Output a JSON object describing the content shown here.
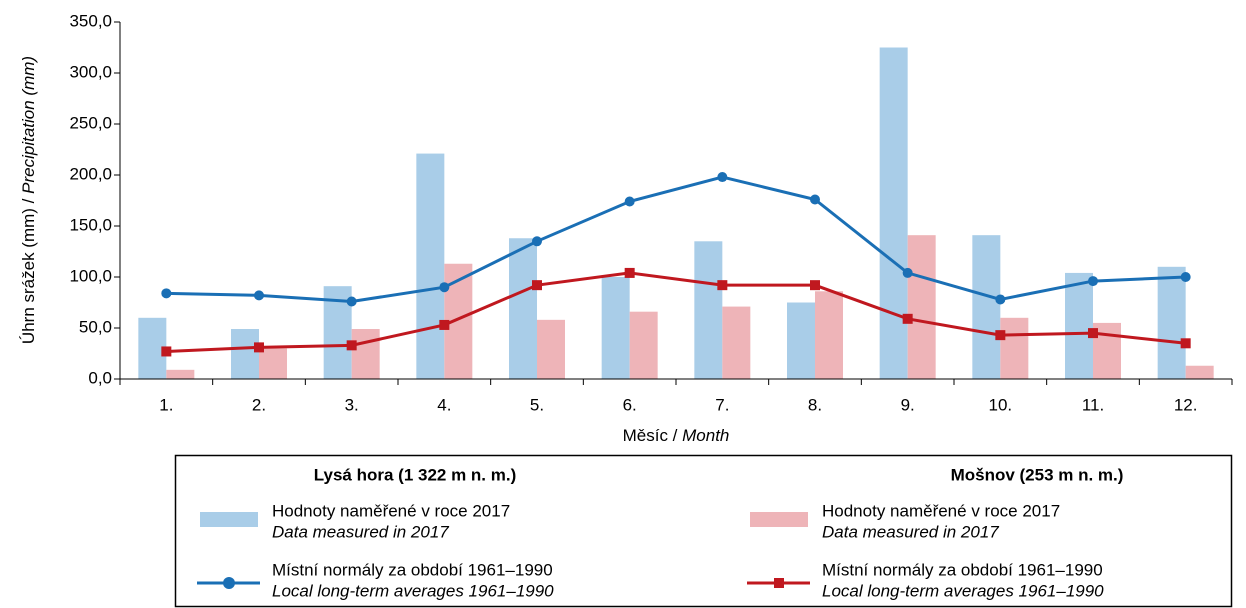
{
  "chart_data": {
    "type": "bar_line",
    "ylabel": {
      "main": "Úhrn srážek (mm) /",
      "italic": "Precipitation (mm)"
    },
    "xlabel": {
      "main": "Měsíc /",
      "italic": "Month"
    },
    "categories": [
      "1.",
      "2.",
      "3.",
      "4.",
      "5.",
      "6.",
      "7.",
      "8.",
      "9.",
      "10.",
      "11.",
      "12."
    ],
    "ylim": [
      0,
      350
    ],
    "yticks": [
      {
        "value": 0,
        "label": "0,0"
      },
      {
        "value": 50,
        "label": "50,0"
      },
      {
        "value": 100,
        "label": "100,0"
      },
      {
        "value": 150,
        "label": "150,0"
      },
      {
        "value": 200,
        "label": "200,0"
      },
      {
        "value": 250,
        "label": "250,0"
      },
      {
        "value": 300,
        "label": "300,0"
      },
      {
        "value": 350,
        "label": "350,0"
      }
    ],
    "legend_groups": [
      "Lysá hora (1 322 m n. m.)",
      "Mošnov (253 m n. m.)"
    ],
    "series": [
      {
        "name": "Hodnoty naměřené v roce 2017",
        "name_en": "Data measured in 2017",
        "kind": "bar",
        "color": "#a9cde8",
        "values": [
          60,
          49,
          91,
          221,
          138,
          100,
          135,
          75,
          325,
          141,
          104,
          110
        ]
      },
      {
        "name": "Hodnoty naměřené v roce 2017",
        "name_en": "Data measured in 2017",
        "kind": "bar",
        "color": "#eeb4b8",
        "values": [
          9,
          30,
          49,
          113,
          58,
          66,
          71,
          86,
          141,
          60,
          55,
          13
        ]
      },
      {
        "name": "Místní normály za období 1961–1990",
        "name_en": "Local long-term averages 1961–1990",
        "kind": "line",
        "marker": "circle",
        "color": "#1a6fb5",
        "values": [
          84,
          82,
          76,
          90,
          135,
          174,
          198,
          176,
          104,
          78,
          96,
          100
        ]
      },
      {
        "name": "Místní normály za období 1961–1990",
        "name_en": "Local long-term averages 1961–1990",
        "kind": "line",
        "marker": "square",
        "color": "#c0181f",
        "values": [
          27,
          31,
          33,
          53,
          92,
          104,
          92,
          92,
          59,
          43,
          45,
          35
        ]
      }
    ]
  }
}
